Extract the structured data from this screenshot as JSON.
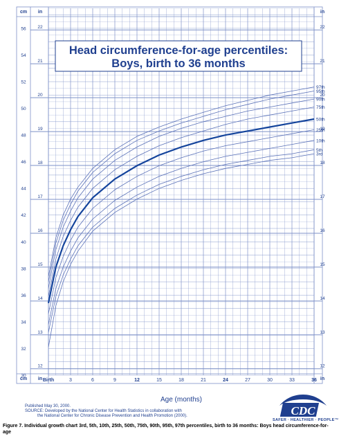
{
  "chart_data": {
    "type": "line",
    "title_line1": "Head circumference-for-age percentiles:",
    "title_line2": "Boys, birth to 36 months",
    "xlabel": "Age (months)",
    "x_first_tick_label": "Birth",
    "x_ticks": [
      3,
      6,
      9,
      12,
      15,
      18,
      21,
      24,
      27,
      30,
      33,
      36
    ],
    "xlim": [
      0,
      36
    ],
    "y_unit_left": "cm",
    "y_unit_right": "in",
    "y_unit_left_bottom": "cm",
    "y_unit_right_bottom": "in",
    "ylim_cm": [
      30,
      57.5
    ],
    "cm_ticks": [
      30,
      32,
      34,
      36,
      38,
      40,
      42,
      44,
      46,
      48,
      50,
      52,
      54,
      56
    ],
    "in_ticks": [
      12,
      13,
      14,
      15,
      16,
      17,
      18,
      19,
      20,
      21,
      22
    ],
    "grid": true,
    "x": [
      0,
      1,
      2,
      3,
      4,
      6,
      9,
      12,
      15,
      18,
      21,
      24,
      27,
      30,
      33,
      36
    ],
    "series": [
      {
        "name": "97th",
        "values": [
          37.4,
          40.3,
          42.0,
          43.2,
          44.1,
          45.5,
          46.9,
          47.9,
          48.6,
          49.2,
          49.7,
          50.2,
          50.6,
          51.0,
          51.3,
          51.6
        ]
      },
      {
        "name": "95th",
        "values": [
          37.0,
          39.9,
          41.6,
          42.8,
          43.8,
          45.2,
          46.6,
          47.6,
          48.3,
          48.9,
          49.4,
          49.9,
          50.3,
          50.7,
          51.0,
          51.3
        ]
      },
      {
        "name": "90th",
        "values": [
          36.5,
          39.4,
          41.1,
          42.3,
          43.3,
          44.7,
          46.1,
          47.1,
          47.9,
          48.5,
          49.0,
          49.4,
          49.8,
          50.1,
          50.4,
          50.7
        ]
      },
      {
        "name": "75th",
        "values": [
          35.9,
          38.7,
          40.4,
          41.6,
          42.6,
          44.0,
          45.4,
          46.4,
          47.2,
          47.8,
          48.3,
          48.8,
          49.2,
          49.5,
          49.8,
          50.1
        ]
      },
      {
        "name": "50th",
        "values": [
          35.4,
          38.1,
          39.7,
          40.9,
          41.9,
          43.3,
          44.7,
          45.7,
          46.5,
          47.1,
          47.6,
          48.0,
          48.3,
          48.6,
          48.9,
          49.2
        ]
      },
      {
        "name": "25th",
        "values": [
          34.6,
          37.3,
          38.9,
          40.1,
          41.1,
          42.5,
          43.9,
          44.9,
          45.7,
          46.3,
          46.8,
          47.2,
          47.5,
          47.8,
          48.1,
          48.4
        ]
      },
      {
        "name": "10th",
        "values": [
          33.8,
          36.5,
          38.1,
          39.3,
          40.3,
          41.7,
          43.1,
          44.1,
          44.9,
          45.5,
          46.0,
          46.4,
          46.7,
          47.0,
          47.3,
          47.6
        ]
      },
      {
        "name": "5th",
        "values": [
          33.2,
          35.9,
          37.5,
          38.7,
          39.7,
          41.1,
          42.5,
          43.5,
          44.3,
          44.9,
          45.4,
          45.8,
          46.1,
          46.4,
          46.6,
          46.9
        ]
      },
      {
        "name": "3rd",
        "values": [
          32.1,
          35.2,
          37.0,
          38.3,
          39.3,
          40.8,
          42.2,
          43.2,
          44.0,
          44.6,
          45.1,
          45.5,
          45.8,
          46.1,
          46.3,
          46.6
        ]
      }
    ],
    "highlight_series": "50th",
    "colors": {
      "grid": "#7e91c8",
      "curve": "#5b72b8",
      "median": "#14449c",
      "text": "#1f3f8f",
      "band": "#d7def1"
    }
  },
  "footer": {
    "published": "Published May 30, 2000.",
    "source_line1": "SOURCE: Developed by the National Center for Health Statistics in collaboration with",
    "source_line2": "the National Center for Chronic Disease Prevention and Health Promotion (2000).",
    "caption": "Figure 7. Individual growth chart 3rd, 5th, 10th, 25th, 50th, 75th, 90th, 95th, 97th percentiles, birth to 36 months: Boys head circumference-for-age",
    "logo_letters": "CDC",
    "logo_tagline": "SAFER · HEALTHIER · PEOPLE™"
  }
}
